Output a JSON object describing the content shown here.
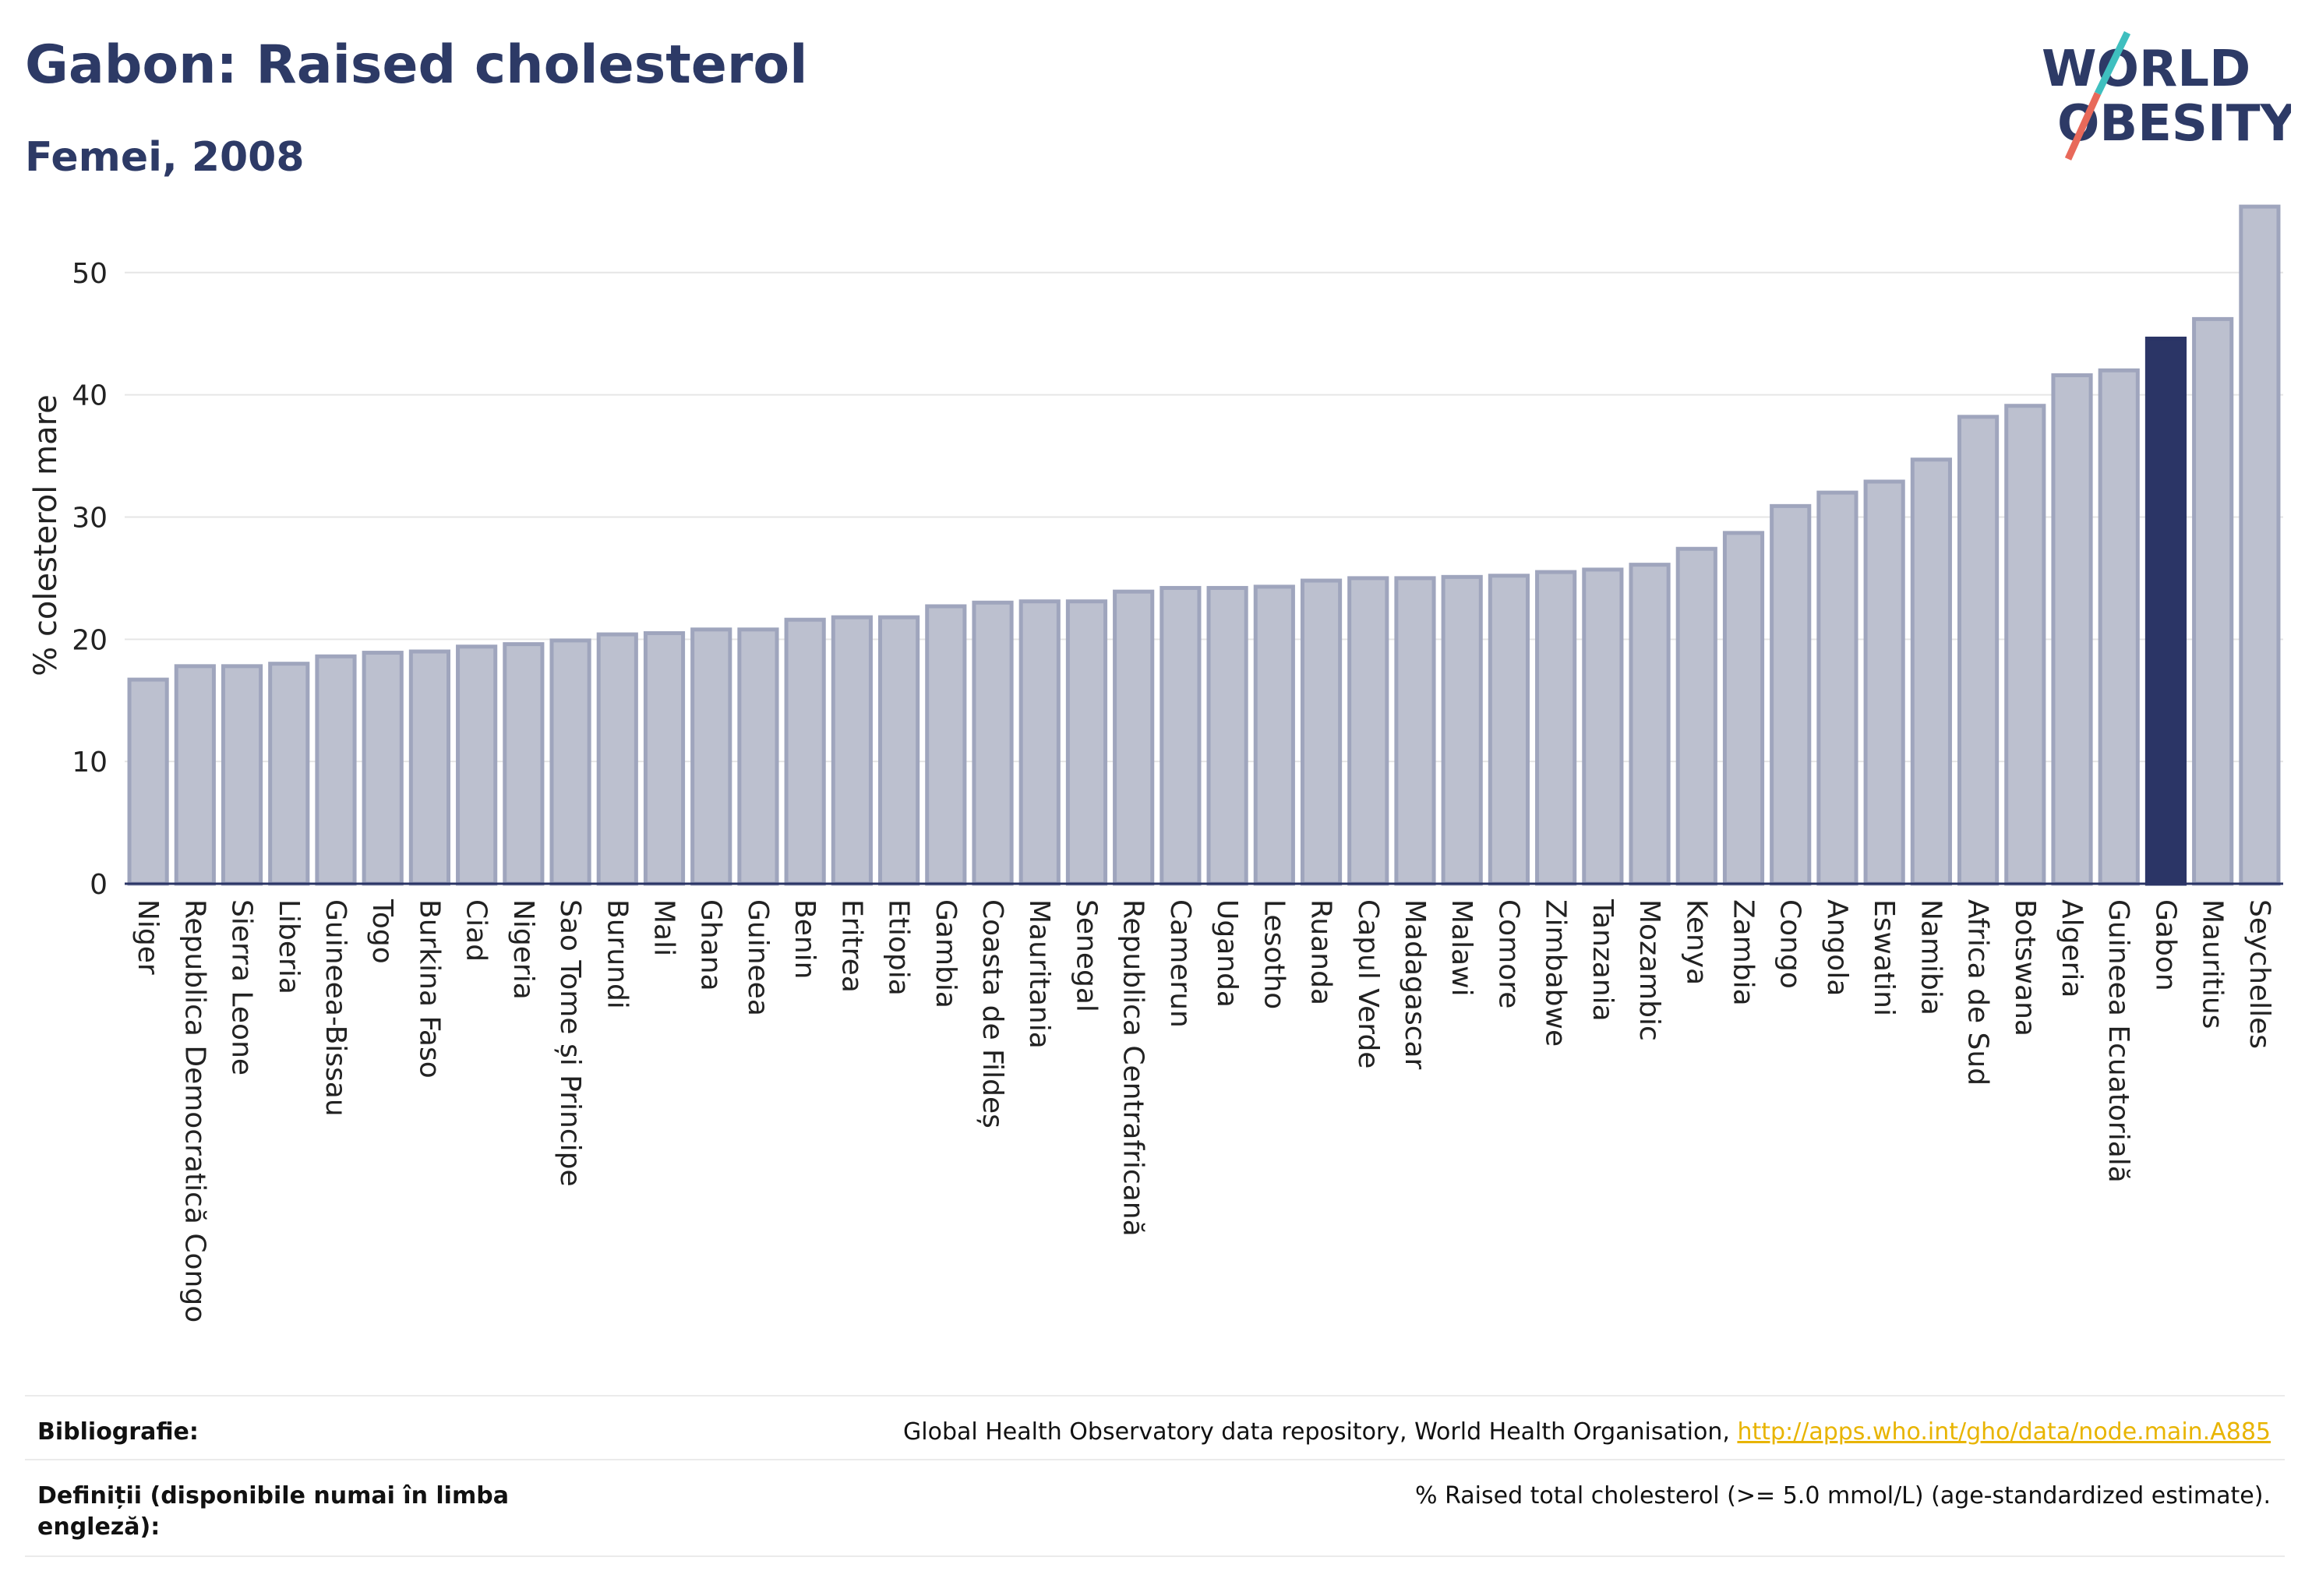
{
  "header": {
    "title": "Gabon: Raised cholesterol",
    "subtitle": "Femei, 2008",
    "logo_line1": "WORLD",
    "logo_line2": "OBESITY"
  },
  "colors": {
    "bar": "#bcc0cf",
    "bar_stroke": "#9fa5bd",
    "highlight": "#2b3566",
    "grid": "#e6e6e6"
  },
  "chart_data": {
    "type": "bar",
    "title": "Gabon: Raised cholesterol",
    "subtitle": "Femei, 2008",
    "ylabel": "% colesterol mare",
    "xlabel": "",
    "ylim": [
      0,
      57
    ],
    "yticks": [
      0,
      10,
      20,
      30,
      40,
      50
    ],
    "grid": true,
    "highlight": "Gabon",
    "categories": [
      "Niger",
      "Republica Democratică Congo",
      "Sierra Leone",
      "Liberia",
      "Guineea-Bissau",
      "Togo",
      "Burkina Faso",
      "Ciad",
      "Nigeria",
      "Sao Tome și Principe",
      "Burundi",
      "Mali",
      "Ghana",
      "Guineea",
      "Benin",
      "Eritrea",
      "Etiopia",
      "Gambia",
      "Coasta de Fildeș",
      "Mauritania",
      "Senegal",
      "Republica Centrafricană",
      "Camerun",
      "Uganda",
      "Lesotho",
      "Ruanda",
      "Capul Verde",
      "Madagascar",
      "Malawi",
      "Comore",
      "Zimbabwe",
      "Tanzania",
      "Mozambic",
      "Kenya",
      "Zambia",
      "Congo",
      "Angola",
      "Eswatini",
      "Namibia",
      "Africa de Sud",
      "Botswana",
      "Algeria",
      "Guineea Ecuatorială",
      "Gabon",
      "Mauritius",
      "Seychelles"
    ],
    "values": [
      16.7,
      17.8,
      17.8,
      18.0,
      18.6,
      18.9,
      19.0,
      19.4,
      19.6,
      19.9,
      20.4,
      20.5,
      20.8,
      20.8,
      21.6,
      21.8,
      21.8,
      22.7,
      23.0,
      23.1,
      23.1,
      23.9,
      24.2,
      24.2,
      24.3,
      24.8,
      25.0,
      25.0,
      25.1,
      25.2,
      25.5,
      25.7,
      26.1,
      27.4,
      28.7,
      30.9,
      32.0,
      32.9,
      34.7,
      38.2,
      39.1,
      41.6,
      42.0,
      44.6,
      46.2,
      55.4
    ]
  },
  "footer": {
    "bibliography_label": "Bibliografie:",
    "bibliography_text": "Global Health Observatory data repository, World Health Organisation, ",
    "bibliography_link": "http://apps.who.int/gho/data/node.main.A885",
    "definitions_label": "Definiții (disponibile numai în limba engleză):",
    "definitions_text": "% Raised total cholesterol (>= 5.0 mmol/L) (age-standardized estimate)."
  }
}
